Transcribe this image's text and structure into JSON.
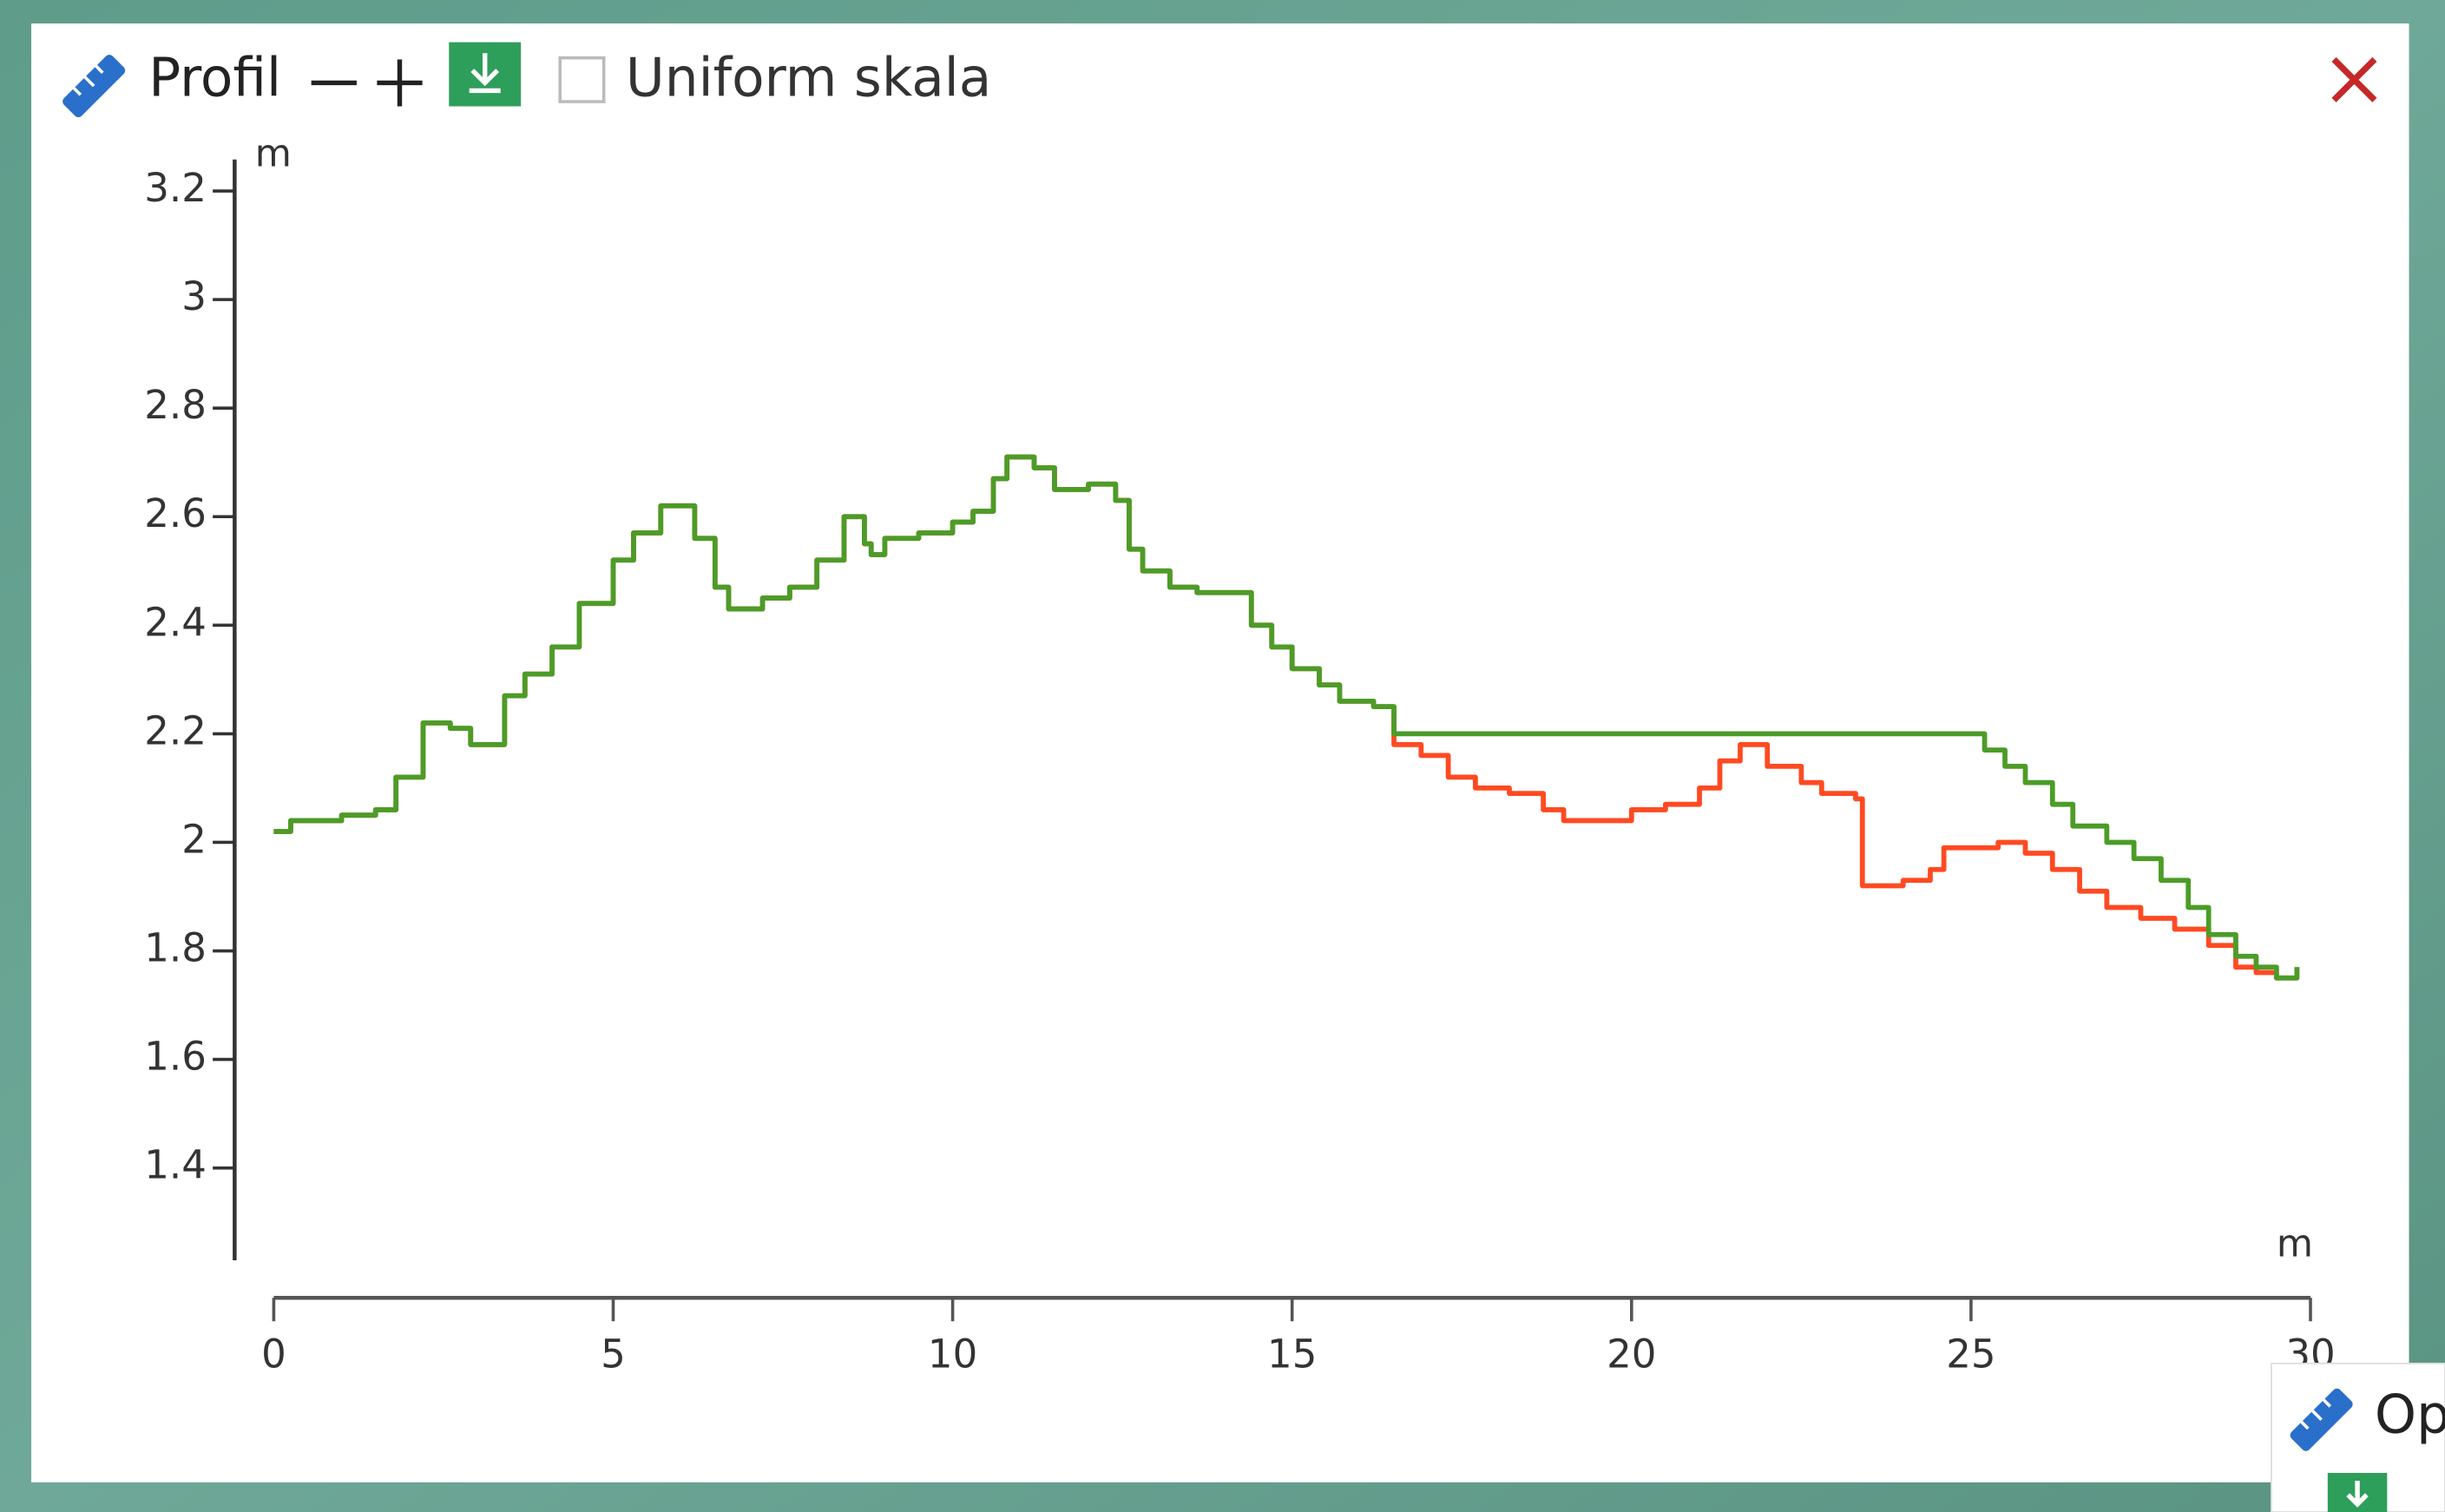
{
  "header": {
    "title": "Profil",
    "checkbox_label": "Uniform skala"
  },
  "other_panel": {
    "title": "Op"
  },
  "chart_data": {
    "type": "line",
    "drawstyle": "steps-post",
    "y_label": "m",
    "x_label": "m",
    "xlim": [
      0,
      30
    ],
    "ylim": [
      1.23,
      3.235
    ],
    "xticks": [
      0,
      5,
      10,
      15,
      20,
      25,
      30
    ],
    "yticks": [
      1.4,
      1.6,
      1.8,
      2,
      2.2,
      2.4,
      2.6,
      2.8,
      3,
      3.2
    ],
    "series": [
      {
        "color": "#ff4a22",
        "x": [
          0,
          0.25,
          1,
          1.5,
          1.8,
          2.2,
          2.6,
          2.9,
          3.4,
          3.7,
          4.1,
          4.5,
          5,
          5.3,
          5.7,
          6.2,
          6.5,
          6.7,
          7.2,
          7.6,
          8,
          8.4,
          8.7,
          8.8,
          9,
          9.5,
          10,
          10.3,
          10.6,
          10.8,
          11.2,
          11.5,
          12,
          12.4,
          12.6,
          12.8,
          13.2,
          13.6,
          14.1,
          14.4,
          14.7,
          15,
          15.4,
          15.7,
          16.2,
          16.5,
          16.9,
          17.3,
          17.7,
          18.2,
          18.7,
          19,
          19.6,
          20,
          20.5,
          21,
          21.3,
          21.6,
          22,
          22.5,
          22.8,
          23.3,
          23.4,
          24,
          24.4,
          24.6,
          25.4,
          25.8,
          26.2,
          26.6,
          27,
          27.5,
          28,
          28.5,
          28.9,
          29.2,
          29.5,
          29.8
        ],
        "values": [
          2.02,
          2.04,
          2.05,
          2.06,
          2.12,
          2.22,
          2.21,
          2.18,
          2.27,
          2.31,
          2.36,
          2.44,
          2.52,
          2.57,
          2.62,
          2.56,
          2.47,
          2.43,
          2.45,
          2.47,
          2.52,
          2.6,
          2.55,
          2.53,
          2.56,
          2.57,
          2.59,
          2.61,
          2.67,
          2.71,
          2.69,
          2.65,
          2.66,
          2.63,
          2.54,
          2.5,
          2.47,
          2.46,
          2.46,
          2.4,
          2.36,
          2.32,
          2.29,
          2.26,
          2.25,
          2.18,
          2.16,
          2.12,
          2.1,
          2.09,
          2.06,
          2.04,
          2.04,
          2.06,
          2.07,
          2.1,
          2.15,
          2.18,
          2.14,
          2.11,
          2.09,
          2.08,
          1.92,
          1.93,
          1.95,
          1.99,
          2,
          1.98,
          1.95,
          1.91,
          1.88,
          1.86,
          1.84,
          1.81,
          1.77,
          1.76,
          1.75,
          1.77
        ]
      },
      {
        "color": "#4c9c28",
        "x": [
          0,
          0.25,
          1,
          1.5,
          1.8,
          2.2,
          2.6,
          2.9,
          3.4,
          3.7,
          4.1,
          4.5,
          5,
          5.3,
          5.7,
          6.2,
          6.5,
          6.7,
          7.2,
          7.6,
          8,
          8.4,
          8.7,
          8.8,
          9,
          9.5,
          10,
          10.3,
          10.6,
          10.8,
          11.2,
          11.5,
          12,
          12.4,
          12.6,
          12.8,
          13.2,
          13.6,
          14.1,
          14.4,
          14.7,
          15,
          15.4,
          15.7,
          16.2,
          16.5,
          24.8,
          25.2,
          25.5,
          25.8,
          26.2,
          26.5,
          27,
          27.4,
          27.8,
          28.2,
          28.5,
          28.9,
          29.2,
          29.5,
          29.8
        ],
        "values": [
          2.02,
          2.04,
          2.05,
          2.06,
          2.12,
          2.22,
          2.21,
          2.18,
          2.27,
          2.31,
          2.36,
          2.44,
          2.52,
          2.57,
          2.62,
          2.56,
          2.47,
          2.43,
          2.45,
          2.47,
          2.52,
          2.6,
          2.55,
          2.53,
          2.56,
          2.57,
          2.59,
          2.61,
          2.67,
          2.71,
          2.69,
          2.65,
          2.66,
          2.63,
          2.54,
          2.5,
          2.47,
          2.46,
          2.46,
          2.4,
          2.36,
          2.32,
          2.29,
          2.26,
          2.25,
          2.2,
          2.2,
          2.17,
          2.14,
          2.11,
          2.07,
          2.03,
          2,
          1.97,
          1.93,
          1.88,
          1.83,
          1.79,
          1.77,
          1.75,
          1.77
        ]
      }
    ]
  }
}
